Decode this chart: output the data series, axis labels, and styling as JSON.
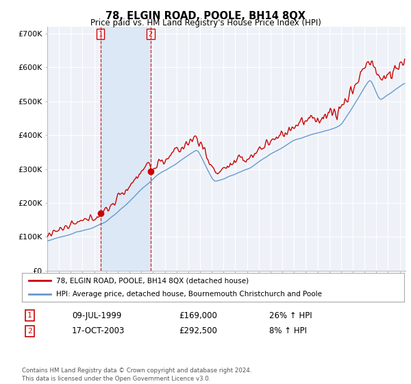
{
  "title": "78, ELGIN ROAD, POOLE, BH14 8QX",
  "subtitle": "Price paid vs. HM Land Registry's House Price Index (HPI)",
  "ylim": [
    0,
    720000
  ],
  "yticks": [
    0,
    100000,
    200000,
    300000,
    400000,
    500000,
    600000,
    700000
  ],
  "ytick_labels": [
    "£0",
    "£100K",
    "£200K",
    "£300K",
    "£400K",
    "£500K",
    "£600K",
    "£700K"
  ],
  "background_color": "#ffffff",
  "plot_bg_color": "#eef2f8",
  "grid_color": "#ffffff",
  "hpi_line_color": "#6699cc",
  "hpi_fill_color": "#ccd9ee",
  "price_line_color": "#cc0000",
  "shade_color": "#dce8f5",
  "sale1_date": 1999.53,
  "sale1_price": 169000,
  "sale2_date": 2003.79,
  "sale2_price": 292500,
  "legend_label1": "78, ELGIN ROAD, POOLE, BH14 8QX (detached house)",
  "legend_label2": "HPI: Average price, detached house, Bournemouth Christchurch and Poole",
  "table_row1": [
    "1",
    "09-JUL-1999",
    "£169,000",
    "26% ↑ HPI"
  ],
  "table_row2": [
    "2",
    "17-OCT-2003",
    "£292,500",
    "8% ↑ HPI"
  ],
  "footer": "Contains HM Land Registry data © Crown copyright and database right 2024.\nThis data is licensed under the Open Government Licence v3.0.",
  "xmin": 1995.0,
  "xmax": 2025.5
}
